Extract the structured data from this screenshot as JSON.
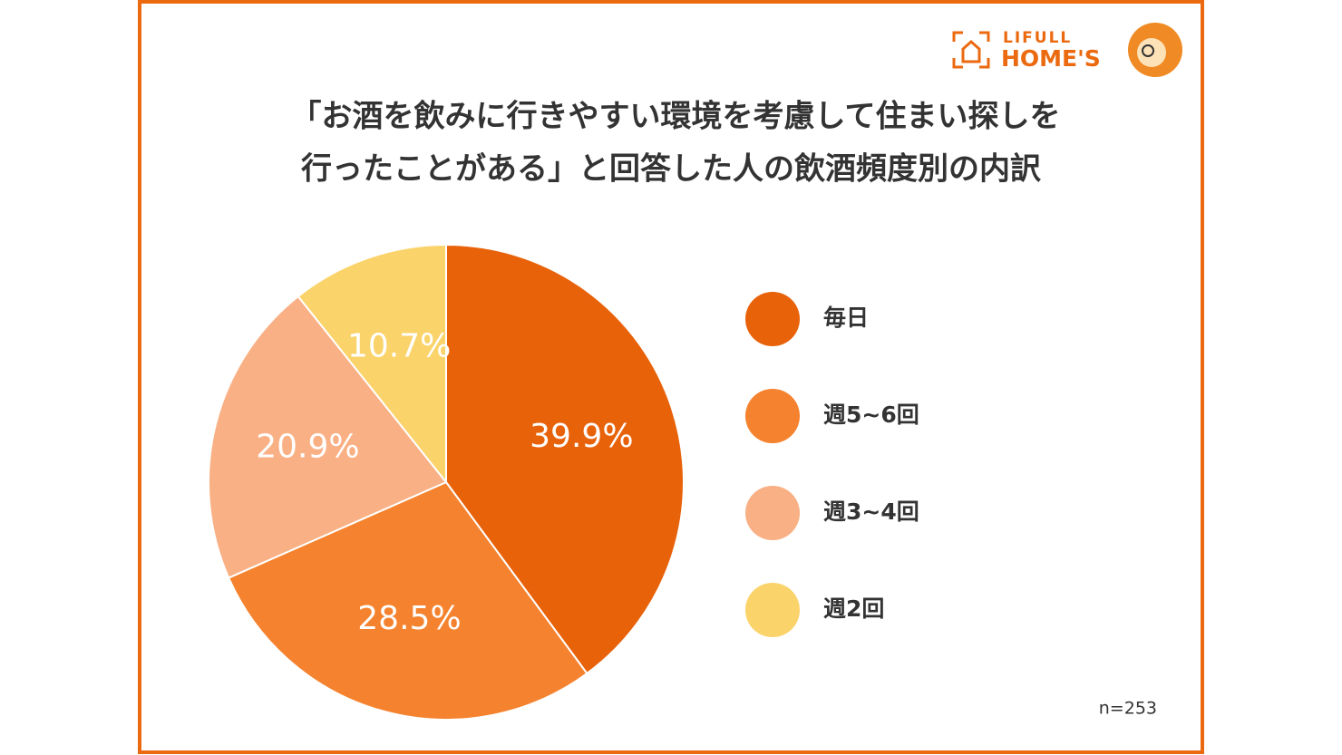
{
  "chart_data": {
    "type": "pie",
    "title": [
      "「お酒を飲みに行きやすい環境を考慮して住まい探しを",
      "行ったことがある」と回答した人の飲酒頻度別の内訳"
    ],
    "categories": [
      "毎日",
      "週5~6回",
      "週3~4回",
      "週2回"
    ],
    "values": [
      39.9,
      28.5,
      20.9,
      10.7
    ],
    "value_labels": [
      "39.9%",
      "28.5%",
      "20.9%",
      "10.7%"
    ],
    "colors": [
      "#e8620a",
      "#f5822e",
      "#f9b084",
      "#fbd36b"
    ],
    "legend": "right",
    "note": "n=253"
  },
  "logo": {
    "line1": "LIFULL",
    "line2": "HOME'S"
  }
}
